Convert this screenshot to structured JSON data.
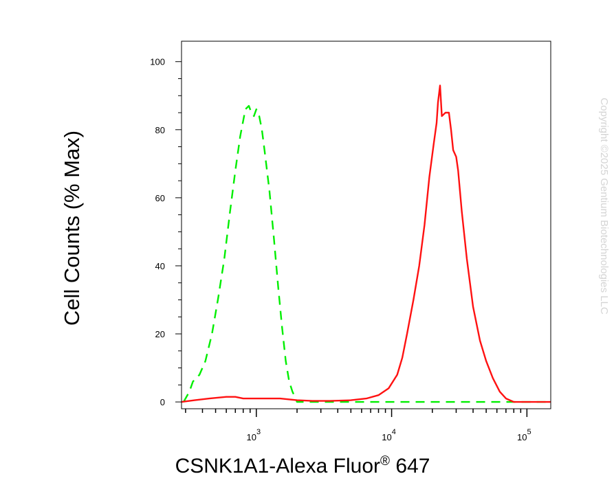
{
  "chart_data": {
    "type": "line",
    "title": "",
    "ylabel": "Cell Counts (% Max)",
    "xlabel_main": "CSNK1A1-Alexa Fluor",
    "xlabel_sup": "®",
    "xlabel_tail": " 647",
    "xscale": "log",
    "xlim": [
      280,
      150000
    ],
    "ylim": [
      -2,
      106
    ],
    "yticks": [
      0,
      20,
      40,
      60,
      80,
      100
    ],
    "ytick_labels": [
      "0",
      "20",
      "40",
      "60",
      "80",
      "100"
    ],
    "xticks": [
      {
        "value": 1000,
        "base": "10",
        "exp": "3"
      },
      {
        "value": 10000,
        "base": "10",
        "exp": "4"
      },
      {
        "value": 100000,
        "base": "10",
        "exp": "5"
      }
    ],
    "grid": false,
    "legend": false,
    "series": [
      {
        "color": "#00ee00",
        "dash": "dashed",
        "x": [
          290,
          320,
          340,
          380,
          420,
          470,
          520,
          580,
          640,
          700,
          760,
          830,
          880,
          920,
          960,
          1000,
          1050,
          1100,
          1150,
          1250,
          1350,
          1450,
          1550,
          1650,
          1750,
          1850,
          1950,
          2000,
          2500,
          4000,
          8000,
          15000,
          30000,
          60000,
          100000,
          150000
        ],
        "y": [
          0,
          3,
          6,
          8,
          12,
          20,
          30,
          42,
          56,
          68,
          78,
          86,
          87,
          85,
          84,
          86,
          84,
          80,
          74,
          62,
          48,
          34,
          22,
          12,
          6,
          3,
          1,
          0,
          0,
          0,
          0,
          0,
          0,
          0,
          0,
          0
        ]
      },
      {
        "color": "#ff1111",
        "dash": "solid",
        "x": [
          280,
          350,
          450,
          600,
          700,
          800,
          900,
          1000,
          1500,
          2000,
          2600,
          3500,
          5000,
          6500,
          8000,
          9500,
          11000,
          12000,
          13000,
          14500,
          16000,
          17500,
          19000,
          20500,
          21500,
          22000,
          22800,
          23500,
          25000,
          26500,
          27500,
          28500,
          30000,
          31000,
          33000,
          36000,
          40000,
          45000,
          50000,
          56000,
          63000,
          70000,
          80000,
          100000,
          150000
        ],
        "y": [
          0,
          0.5,
          1,
          1.5,
          1.5,
          1,
          1,
          1,
          1,
          0.5,
          0.3,
          0.3,
          0.5,
          1,
          2,
          4,
          8,
          13,
          20,
          30,
          40,
          52,
          66,
          76,
          82,
          88,
          93,
          84,
          85,
          85,
          80,
          74,
          72,
          68,
          56,
          42,
          28,
          18,
          12,
          7,
          3,
          1,
          0,
          0,
          0
        ]
      }
    ]
  },
  "watermark": "Copyright ©2025 Gentium Biotechnologies LLC"
}
